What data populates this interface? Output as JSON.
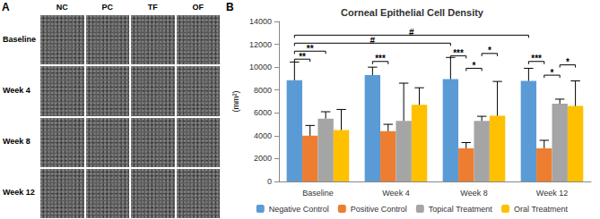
{
  "panel_a": {
    "label": "A",
    "columns": [
      "NC",
      "PC",
      "TF",
      "OF"
    ],
    "rows": [
      "Baseline",
      "Week 4",
      "Week 8",
      "Week 12"
    ]
  },
  "chart_data": {
    "type": "bar",
    "panel_label": "B",
    "title": "Corneal Epithelial Cell Density",
    "y_label": "(mm²)",
    "categories": [
      "Baseline",
      "Week 4",
      "Week 8",
      "Week 12"
    ],
    "series": [
      {
        "name": "Negative Control",
        "color": "#5B9BD5",
        "values": [
          8850,
          9300,
          8950,
          8800
        ],
        "errors": [
          1600,
          700,
          1900,
          1100
        ]
      },
      {
        "name": "Positive Control",
        "color": "#ED7D31",
        "values": [
          4000,
          4400,
          2900,
          2900
        ],
        "errors": [
          900,
          600,
          500,
          700
        ]
      },
      {
        "name": "Topical Treatment",
        "color": "#A5A5A5",
        "values": [
          5500,
          5300,
          5300,
          6800
        ],
        "errors": [
          600,
          3300,
          400,
          400
        ]
      },
      {
        "name": "Oral Treatment",
        "color": "#FFC000",
        "values": [
          4500,
          6700,
          5750,
          6600
        ],
        "errors": [
          1800,
          1500,
          3000,
          2200
        ]
      }
    ],
    "annotations": [
      {
        "label": "#",
        "from": {
          "category": "Baseline",
          "series": "Negative Control"
        },
        "to": {
          "category": "Week 12",
          "series": "Negative Control"
        },
        "y": 12800
      },
      {
        "label": "#",
        "from": {
          "category": "Baseline",
          "series": "Negative Control"
        },
        "to": {
          "category": "Week 8",
          "series": "Negative Control"
        },
        "y": 12100
      },
      {
        "label": "**",
        "from": {
          "category": "Baseline",
          "series": "Negative Control"
        },
        "to": {
          "category": "Baseline",
          "series": "Topical Treatment"
        },
        "y": 11400
      },
      {
        "label": "**",
        "from": {
          "category": "Baseline",
          "series": "Negative Control"
        },
        "to": {
          "category": "Baseline",
          "series": "Positive Control"
        },
        "y": 10700
      },
      {
        "label": "***",
        "from": {
          "category": "Week 4",
          "series": "Negative Control"
        },
        "to": {
          "category": "Week 4",
          "series": "Positive Control"
        },
        "y": 10500
      },
      {
        "label": "***",
        "from": {
          "category": "Week 8",
          "series": "Negative Control"
        },
        "to": {
          "category": "Week 8",
          "series": "Positive Control"
        },
        "y": 11000
      },
      {
        "label": "*",
        "from": {
          "category": "Week 8",
          "series": "Positive Control"
        },
        "to": {
          "category": "Week 8",
          "series": "Topical Treatment"
        },
        "y": 9900
      },
      {
        "label": "*",
        "from": {
          "category": "Week 8",
          "series": "Topical Treatment"
        },
        "to": {
          "category": "Week 8",
          "series": "Oral Treatment"
        },
        "y": 11200
      },
      {
        "label": "***",
        "from": {
          "category": "Week 12",
          "series": "Negative Control"
        },
        "to": {
          "category": "Week 12",
          "series": "Positive Control"
        },
        "y": 10500
      },
      {
        "label": "*",
        "from": {
          "category": "Week 12",
          "series": "Positive Control"
        },
        "to": {
          "category": "Week 12",
          "series": "Topical Treatment"
        },
        "y": 9300
      },
      {
        "label": "*",
        "from": {
          "category": "Week 12",
          "series": "Topical Treatment"
        },
        "to": {
          "category": "Week 12",
          "series": "Oral Treatment"
        },
        "y": 10200
      }
    ],
    "ylim": [
      0,
      14000
    ],
    "yticks": [
      0,
      2000,
      4000,
      6000,
      8000,
      10000,
      12000,
      14000
    ],
    "grid": false,
    "legend": "bottom"
  }
}
